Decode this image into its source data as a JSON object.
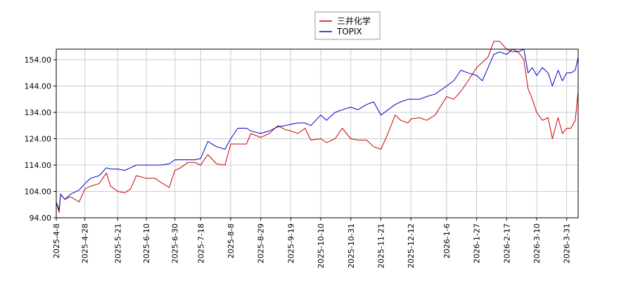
{
  "chart_data": {
    "type": "line",
    "title": "",
    "xlabel": "",
    "ylabel": "",
    "ylim": [
      94.0,
      158.0
    ],
    "y_ticks": [
      "94.00",
      "104.00",
      "114.00",
      "124.00",
      "134.00",
      "144.00",
      "154.00"
    ],
    "x_ticks": [
      "2025-4-8",
      "2025-4-28",
      "2025-5-21",
      "2025-6-10",
      "2025-6-30",
      "2025-7-18",
      "2025-8-8",
      "2025-8-29",
      "2025-9-19",
      "2025-10-10",
      "2025-10-31",
      "2025-11-21",
      "2025-12-12",
      "2026-1-6",
      "2026-1-27",
      "2026-2-17",
      "2026-3-10",
      "2026-3-31"
    ],
    "x_range": [
      "2025-4-8",
      "2026-4-8"
    ],
    "grid": true,
    "legend_position": "top-center",
    "series": [
      {
        "name": "三井化学",
        "color": "#cc0000",
        "points": [
          [
            "2025-4-8",
            100
          ],
          [
            "2025-4-10",
            96
          ],
          [
            "2025-4-11",
            103
          ],
          [
            "2025-4-14",
            101
          ],
          [
            "2025-4-18",
            102
          ],
          [
            "2025-4-24",
            100
          ],
          [
            "2025-4-28",
            105
          ],
          [
            "2025-5-2",
            106
          ],
          [
            "2025-5-8",
            107
          ],
          [
            "2025-5-13",
            111
          ],
          [
            "2025-5-16",
            106
          ],
          [
            "2025-5-21",
            104
          ],
          [
            "2025-5-26",
            103.5
          ],
          [
            "2025-5-30",
            105
          ],
          [
            "2025-6-3",
            110
          ],
          [
            "2025-6-10",
            109
          ],
          [
            "2025-6-16",
            109
          ],
          [
            "2025-6-20",
            107.5
          ],
          [
            "2025-6-26",
            105.5
          ],
          [
            "2025-6-30",
            112
          ],
          [
            "2025-7-4",
            113
          ],
          [
            "2025-7-9",
            115
          ],
          [
            "2025-7-14",
            115
          ],
          [
            "2025-7-18",
            114
          ],
          [
            "2025-7-23",
            118
          ],
          [
            "2025-7-29",
            114.5
          ],
          [
            "2025-8-4",
            114
          ],
          [
            "2025-8-8",
            122
          ],
          [
            "2025-8-13",
            122
          ],
          [
            "2025-8-19",
            122
          ],
          [
            "2025-8-22",
            126
          ],
          [
            "2025-8-29",
            124.5
          ],
          [
            "2025-9-4",
            126
          ],
          [
            "2025-9-10",
            129
          ],
          [
            "2025-9-15",
            127.5
          ],
          [
            "2025-9-19",
            127
          ],
          [
            "2025-9-24",
            126
          ],
          [
            "2025-9-29",
            128
          ],
          [
            "2025-10-3",
            123.5
          ],
          [
            "2025-10-10",
            124
          ],
          [
            "2025-10-14",
            122.5
          ],
          [
            "2025-10-20",
            124
          ],
          [
            "2025-10-25",
            128
          ],
          [
            "2025-10-31",
            124
          ],
          [
            "2025-11-5",
            123.5
          ],
          [
            "2025-11-11",
            123.5
          ],
          [
            "2025-11-16",
            121
          ],
          [
            "2025-11-21",
            120
          ],
          [
            "2025-11-26",
            126
          ],
          [
            "2025-12-1",
            133
          ],
          [
            "2025-12-5",
            131
          ],
          [
            "2025-12-10",
            130
          ],
          [
            "2025-12-12",
            131.5
          ],
          [
            "2025-12-18",
            132
          ],
          [
            "2025-12-23",
            131
          ],
          [
            "2025-12-29",
            133
          ],
          [
            "2026-1-6",
            140
          ],
          [
            "2026-1-11",
            139
          ],
          [
            "2026-1-16",
            142
          ],
          [
            "2026-1-21",
            146
          ],
          [
            "2026-1-27",
            151
          ],
          [
            "2026-1-31",
            153
          ],
          [
            "2026-2-4",
            155
          ],
          [
            "2026-2-8",
            161
          ],
          [
            "2026-2-12",
            161
          ],
          [
            "2026-2-17",
            158
          ],
          [
            "2026-2-21",
            157
          ],
          [
            "2026-2-25",
            157
          ],
          [
            "2026-3-1",
            154
          ],
          [
            "2026-3-4",
            143
          ],
          [
            "2026-3-7",
            139
          ],
          [
            "2026-3-10",
            134
          ],
          [
            "2026-3-14",
            131
          ],
          [
            "2026-3-18",
            132
          ],
          [
            "2026-3-21",
            124
          ],
          [
            "2026-3-25",
            132
          ],
          [
            "2026-3-28",
            126
          ],
          [
            "2026-3-31",
            128
          ],
          [
            "2026-4-3",
            128
          ],
          [
            "2026-4-6",
            131
          ],
          [
            "2026-4-8",
            142
          ]
        ]
      },
      {
        "name": "TOPIX",
        "color": "#0000cc",
        "points": [
          [
            "2025-4-8",
            100
          ],
          [
            "2025-4-10",
            97
          ],
          [
            "2025-4-11",
            103
          ],
          [
            "2025-4-14",
            101
          ],
          [
            "2025-4-18",
            103
          ],
          [
            "2025-4-24",
            104.5
          ],
          [
            "2025-4-28",
            107
          ],
          [
            "2025-5-2",
            109
          ],
          [
            "2025-5-8",
            110
          ],
          [
            "2025-5-13",
            113
          ],
          [
            "2025-5-16",
            112.5
          ],
          [
            "2025-5-21",
            112.5
          ],
          [
            "2025-5-26",
            112
          ],
          [
            "2025-5-30",
            113
          ],
          [
            "2025-6-3",
            114
          ],
          [
            "2025-6-10",
            114
          ],
          [
            "2025-6-16",
            114
          ],
          [
            "2025-6-20",
            114
          ],
          [
            "2025-6-26",
            114.5
          ],
          [
            "2025-6-30",
            116
          ],
          [
            "2025-7-4",
            116
          ],
          [
            "2025-7-9",
            116
          ],
          [
            "2025-7-14",
            116
          ],
          [
            "2025-7-18",
            116.5
          ],
          [
            "2025-7-23",
            123
          ],
          [
            "2025-7-29",
            121
          ],
          [
            "2025-8-4",
            120
          ],
          [
            "2025-8-8",
            124
          ],
          [
            "2025-8-13",
            128
          ],
          [
            "2025-8-19",
            128
          ],
          [
            "2025-8-22",
            127
          ],
          [
            "2025-8-29",
            126
          ],
          [
            "2025-9-4",
            127
          ],
          [
            "2025-9-10",
            128.5
          ],
          [
            "2025-9-15",
            129
          ],
          [
            "2025-9-19",
            129.5
          ],
          [
            "2025-9-24",
            130
          ],
          [
            "2025-9-29",
            130
          ],
          [
            "2025-10-3",
            129
          ],
          [
            "2025-10-10",
            133
          ],
          [
            "2025-10-14",
            131
          ],
          [
            "2025-10-20",
            134
          ],
          [
            "2025-10-25",
            135
          ],
          [
            "2025-10-31",
            136
          ],
          [
            "2025-11-5",
            135
          ],
          [
            "2025-11-11",
            137
          ],
          [
            "2025-11-16",
            138
          ],
          [
            "2025-11-21",
            133
          ],
          [
            "2025-11-26",
            135
          ],
          [
            "2025-12-1",
            137
          ],
          [
            "2025-12-5",
            138
          ],
          [
            "2025-12-10",
            139
          ],
          [
            "2025-12-12",
            139
          ],
          [
            "2025-12-18",
            139
          ],
          [
            "2025-12-23",
            140
          ],
          [
            "2025-12-29",
            141
          ],
          [
            "2026-1-6",
            144
          ],
          [
            "2026-1-11",
            146
          ],
          [
            "2026-1-16",
            150
          ],
          [
            "2026-1-21",
            149
          ],
          [
            "2026-1-27",
            148
          ],
          [
            "2026-1-31",
            146
          ],
          [
            "2026-2-4",
            151
          ],
          [
            "2026-2-8",
            156
          ],
          [
            "2026-2-12",
            157
          ],
          [
            "2026-2-17",
            156
          ],
          [
            "2026-2-21",
            158
          ],
          [
            "2026-2-25",
            157
          ],
          [
            "2026-3-1",
            158
          ],
          [
            "2026-3-4",
            149
          ],
          [
            "2026-3-7",
            151
          ],
          [
            "2026-3-10",
            148
          ],
          [
            "2026-3-14",
            151
          ],
          [
            "2026-3-18",
            149
          ],
          [
            "2026-3-21",
            144
          ],
          [
            "2026-3-25",
            150
          ],
          [
            "2026-3-28",
            146
          ],
          [
            "2026-3-31",
            149
          ],
          [
            "2026-4-3",
            149
          ],
          [
            "2026-4-6",
            150
          ],
          [
            "2026-4-8",
            155
          ]
        ]
      }
    ]
  }
}
